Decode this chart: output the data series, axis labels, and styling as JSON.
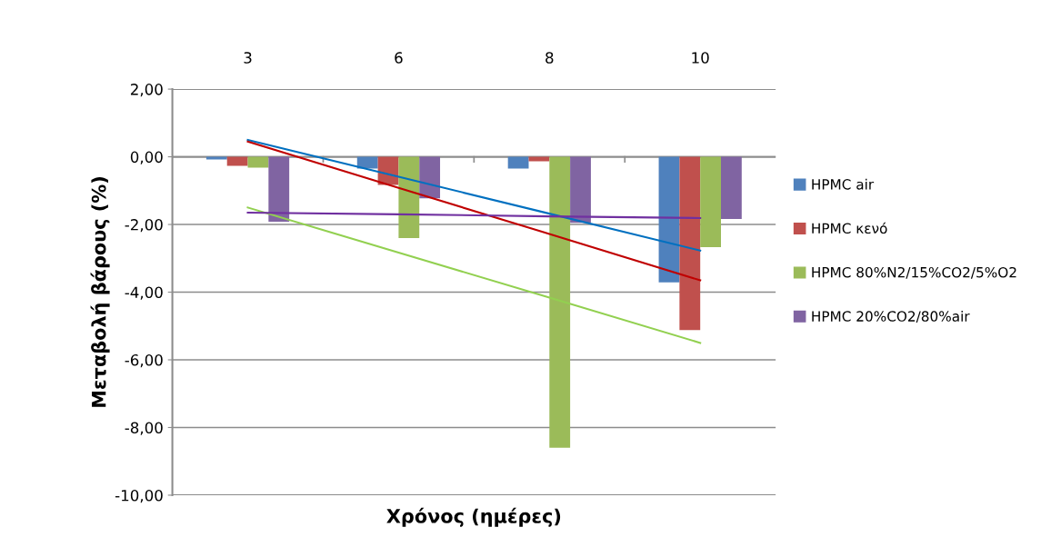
{
  "chart_data": {
    "type": "bar",
    "xlabel": "Χρόνος (ημέρες)",
    "ylabel": "Μεταβολή βάρους (%)",
    "categories": [
      "3",
      "6",
      "8",
      "10"
    ],
    "series": [
      {
        "name": "HPMC air",
        "color": "#4f81bd",
        "values": [
          -0.08,
          -0.35,
          -0.35,
          -3.71
        ]
      },
      {
        "name": "HPMC κενό",
        "color": "#c0504d",
        "values": [
          -0.27,
          -0.83,
          -0.13,
          -5.12
        ]
      },
      {
        "name": "HPMC 80%N2/15%CO2/5%O2",
        "color": "#9bbb59",
        "values": [
          -0.32,
          -2.4,
          -8.6,
          -2.67
        ]
      },
      {
        "name": "HPMC 20%CO2/80%air",
        "color": "#8064a2",
        "values": [
          -1.92,
          -1.23,
          -1.95,
          -1.84
        ]
      },
      {
        "type": "line",
        "color": "#0070c0",
        "values": [
          0.5,
          -0.59,
          -1.68,
          -2.77
        ]
      },
      {
        "type": "line",
        "color": "#c00000",
        "values": [
          0.45,
          -0.92,
          -2.28,
          -3.65
        ]
      },
      {
        "type": "line",
        "color": "#92d050",
        "values": [
          -1.5,
          -2.83,
          -4.16,
          -5.5
        ]
      },
      {
        "type": "line",
        "color": "#7030a0",
        "values": [
          -1.65,
          -1.7,
          -1.76,
          -1.81
        ]
      }
    ],
    "ylim": [
      -10,
      2
    ],
    "yticks": [
      {
        "value": -10,
        "label": "-10,00"
      },
      {
        "value": -8,
        "label": "-8,00"
      },
      {
        "value": -6,
        "label": "-6,00"
      },
      {
        "value": -4,
        "label": "-4,00"
      },
      {
        "value": -2,
        "label": "-2,00"
      },
      {
        "value": 0,
        "label": "0,00"
      },
      {
        "value": 2,
        "label": "2,00"
      }
    ],
    "grid": "y",
    "legend": "right",
    "line_style": "solid",
    "marker": "none"
  }
}
